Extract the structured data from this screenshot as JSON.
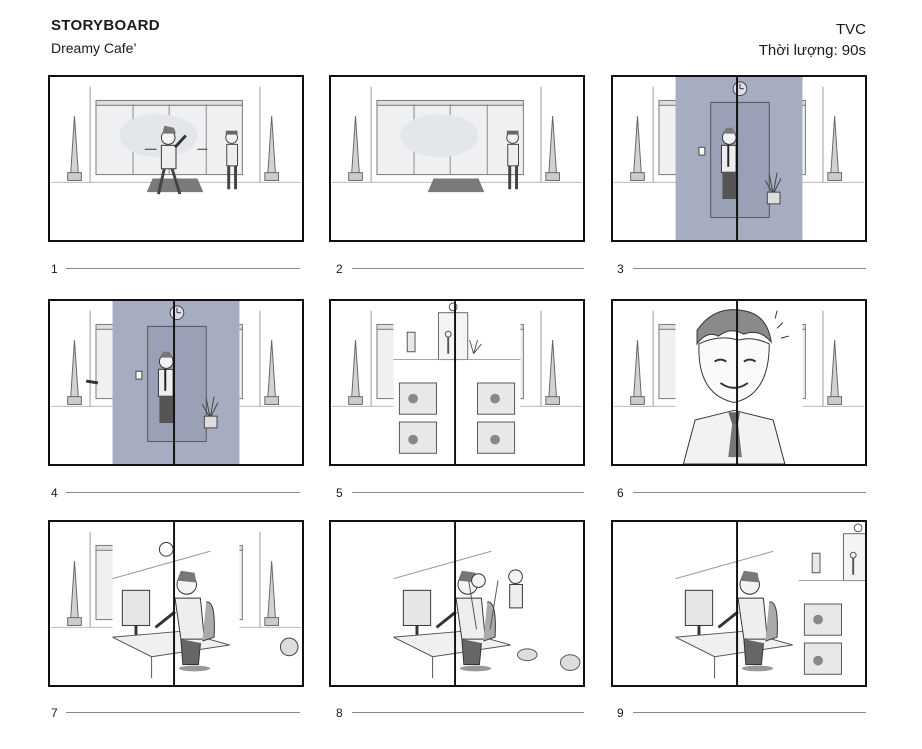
{
  "header": {
    "title": "STORYBOARD",
    "subtitle": "Dreamy Cafe’",
    "format": "TVC",
    "duration": "Thời lượng: 90s"
  },
  "panels": [
    {
      "number": "1"
    },
    {
      "number": "2"
    },
    {
      "number": "3"
    },
    {
      "number": "4"
    },
    {
      "number": "5"
    },
    {
      "number": "6"
    },
    {
      "number": "7"
    },
    {
      "number": "8"
    },
    {
      "number": "9"
    }
  ],
  "colors": {
    "frame": "#111111",
    "wall_shade": "#a6adc1",
    "sketch": "#555555",
    "rule": "#8a8a8a"
  }
}
